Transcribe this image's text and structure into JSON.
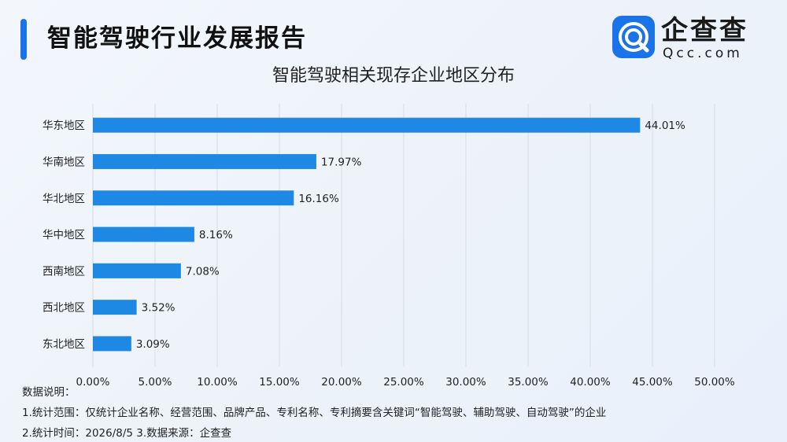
{
  "header": {
    "title": "智能驾驶行业发展报告",
    "logo_name": "企查查",
    "logo_domain": "Qcc.com",
    "accent_color": "#1a73e8"
  },
  "chart_data": {
    "type": "bar",
    "orientation": "horizontal",
    "title": "智能驾驶相关现存企业地区分布",
    "categories": [
      "华东地区",
      "华南地区",
      "华北地区",
      "华中地区",
      "西南地区",
      "西北地区",
      "东北地区"
    ],
    "values": [
      44.01,
      17.97,
      16.16,
      8.16,
      7.08,
      3.52,
      3.09
    ],
    "value_labels": [
      "44.01%",
      "17.97%",
      "16.16%",
      "8.16%",
      "7.08%",
      "3.52%",
      "3.09%"
    ],
    "xlim": [
      0,
      50
    ],
    "x_ticks": [
      "0.00%",
      "5.00%",
      "10.00%",
      "15.00%",
      "20.00%",
      "25.00%",
      "30.00%",
      "35.00%",
      "40.00%",
      "45.00%",
      "50.00%"
    ],
    "grid": true,
    "bar_color": "#1e88e5",
    "grid_color": "#d5dce6"
  },
  "notes": {
    "heading": "数据说明：",
    "line1": "1.统计范围：仅统计企业名称、经营范围、品牌产品、专利名称、专利摘要含关键词“智能驾驶、辅助驾驶、自动驾驶”的企业",
    "line2": "2.统计时间：2026/8/5  3.数据来源：企查查"
  }
}
